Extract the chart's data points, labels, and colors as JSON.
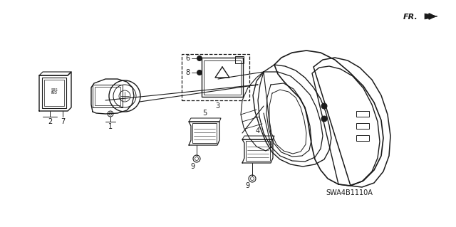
{
  "bg_color": "#ffffff",
  "line_color": "#1a1a1a",
  "diagram_code": "SWA4B1110A",
  "fr_label": "FR.",
  "lw_main": 1.0,
  "lw_thin": 0.5,
  "label_fontsize": 7,
  "figsize": [
    6.4,
    3.19
  ],
  "dpi": 100,
  "xlim": [
    0,
    640
  ],
  "ylim": [
    0,
    319
  ]
}
